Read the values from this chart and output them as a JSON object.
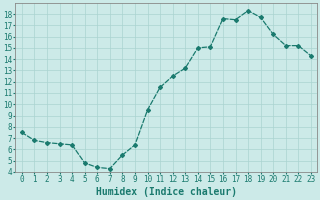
{
  "x": [
    0,
    1,
    2,
    3,
    4,
    5,
    6,
    7,
    8,
    9,
    10,
    11,
    12,
    13,
    14,
    15,
    16,
    17,
    18,
    19,
    20,
    21,
    22,
    23
  ],
  "y": [
    7.5,
    6.8,
    6.6,
    6.5,
    6.4,
    4.8,
    4.4,
    4.3,
    5.5,
    6.4,
    9.5,
    11.5,
    12.5,
    13.2,
    15.0,
    15.1,
    17.6,
    17.5,
    18.3,
    17.7,
    16.2,
    15.2,
    15.2,
    14.3
  ],
  "line_color": "#1a7a6e",
  "marker": "D",
  "marker_size": 2,
  "linewidth": 0.9,
  "bg_color": "#cceae8",
  "grid_color": "#aad4d0",
  "xlabel": "Humidex (Indice chaleur)",
  "xlim": [
    -0.5,
    23.5
  ],
  "ylim": [
    4,
    19
  ],
  "yticks": [
    4,
    5,
    6,
    7,
    8,
    9,
    10,
    11,
    12,
    13,
    14,
    15,
    16,
    17,
    18
  ],
  "xticks": [
    0,
    1,
    2,
    3,
    4,
    5,
    6,
    7,
    8,
    9,
    10,
    11,
    12,
    13,
    14,
    15,
    16,
    17,
    18,
    19,
    20,
    21,
    22,
    23
  ],
  "tick_fontsize": 5.5,
  "xlabel_fontsize": 7,
  "tick_color": "#1a7a6e",
  "spine_color": "#888888"
}
